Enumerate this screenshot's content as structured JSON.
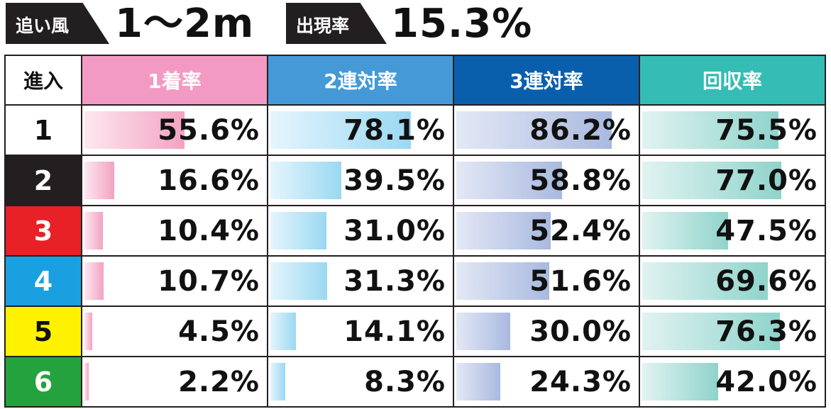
{
  "header": {
    "wind_label": "追い風",
    "wind_value": "1～2m",
    "rate_label": "出現率",
    "rate_value": "15.3%"
  },
  "columns": [
    {
      "label": "進入",
      "color": "#ffffff"
    },
    {
      "label": "1着率",
      "color": "#f29ac4"
    },
    {
      "label": "2連対率",
      "color": "#4599d7"
    },
    {
      "label": "3連対率",
      "color": "#0a5fad"
    },
    {
      "label": "回収率",
      "color": "#35bcb4"
    }
  ],
  "bar_gradients": [
    [
      "#fde7ef",
      "#f2a3c2"
    ],
    [
      "#e5f5fd",
      "#9ad8f2"
    ],
    [
      "#e3e8f5",
      "#a9b9df"
    ],
    [
      "#e1f3f1",
      "#8fd3cb"
    ]
  ],
  "rows": [
    {
      "lane": "1",
      "lane_bg": "#ffffff",
      "lane_fg": "#111111",
      "values": [
        "55.6%",
        "78.1%",
        "86.2%",
        "75.5%"
      ]
    },
    {
      "lane": "2",
      "lane_bg": "#231f20",
      "lane_fg": "#ffffff",
      "values": [
        "16.6%",
        "39.5%",
        "58.8%",
        "77.0%"
      ]
    },
    {
      "lane": "3",
      "lane_bg": "#e82127",
      "lane_fg": "#ffffff",
      "values": [
        "10.4%",
        "31.0%",
        "52.4%",
        "47.5%"
      ]
    },
    {
      "lane": "4",
      "lane_bg": "#1aa0e0",
      "lane_fg": "#ffffff",
      "values": [
        "10.7%",
        "31.3%",
        "51.6%",
        "69.6%"
      ]
    },
    {
      "lane": "5",
      "lane_bg": "#fff200",
      "lane_fg": "#111111",
      "values": [
        "4.5%",
        "14.1%",
        "30.0%",
        "76.3%"
      ]
    },
    {
      "lane": "6",
      "lane_bg": "#23a23e",
      "lane_fg": "#ffffff",
      "values": [
        "2.2%",
        "8.3%",
        "24.3%",
        "42.0%"
      ]
    }
  ],
  "chart_data": {
    "type": "table",
    "categories": [
      "1",
      "2",
      "3",
      "4",
      "5",
      "6"
    ],
    "series": [
      {
        "name": "1着率",
        "values": [
          55.6,
          16.6,
          10.4,
          10.7,
          4.5,
          2.2
        ]
      },
      {
        "name": "2連対率",
        "values": [
          78.1,
          39.5,
          31.0,
          31.3,
          14.1,
          8.3
        ]
      },
      {
        "name": "3連対率",
        "values": [
          86.2,
          58.8,
          52.4,
          51.6,
          30.0,
          24.3
        ]
      },
      {
        "name": "回収率",
        "values": [
          75.5,
          77.0,
          47.5,
          69.6,
          76.3,
          42.0
        ]
      }
    ],
    "ylim": [
      0,
      100
    ]
  }
}
